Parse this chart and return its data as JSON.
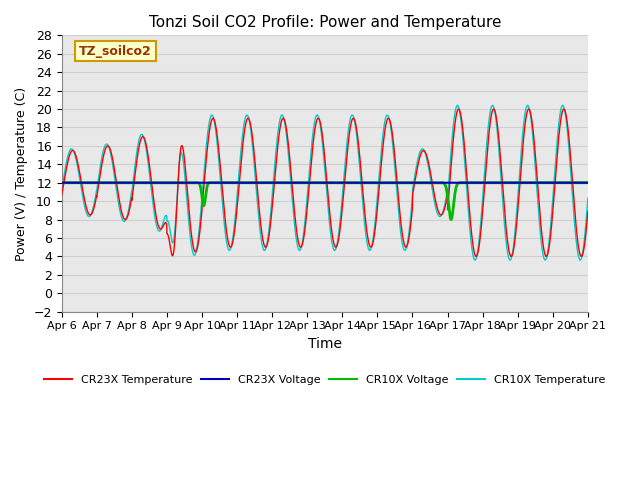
{
  "title": "Tonzi Soil CO2 Profile: Power and Temperature",
  "xlabel": "Time",
  "ylabel": "Power (V) / Temperature (C)",
  "xlim": [
    0,
    15
  ],
  "ylim": [
    -2,
    28
  ],
  "yticks": [
    -2,
    0,
    2,
    4,
    6,
    8,
    10,
    12,
    14,
    16,
    18,
    20,
    22,
    24,
    26,
    28
  ],
  "xtick_labels": [
    "Apr 6",
    "Apr 7",
    "Apr 8",
    "Apr 9",
    "Apr 10",
    "Apr 11",
    "Apr 12",
    "Apr 13",
    "Apr 14",
    "Apr 15",
    "Apr 16",
    "Apr 17",
    "Apr 18",
    "Apr 19",
    "Apr 20",
    "Apr 21"
  ],
  "legend_labels": [
    "CR23X Temperature",
    "CR23X Voltage",
    "CR10X Voltage",
    "CR10X Temperature"
  ],
  "legend_colors": [
    "#ff0000",
    "#0000cc",
    "#00bb00",
    "#00cccc"
  ],
  "annotation_text": "TZ_soilco2",
  "annotation_bg": "#ffffcc",
  "annotation_border": "#cc9900",
  "voltage_level": 12.0,
  "bg_color": "#ffffff",
  "grid_color": "#d0d0d0",
  "axes_bg_color": "#e8e8e8"
}
